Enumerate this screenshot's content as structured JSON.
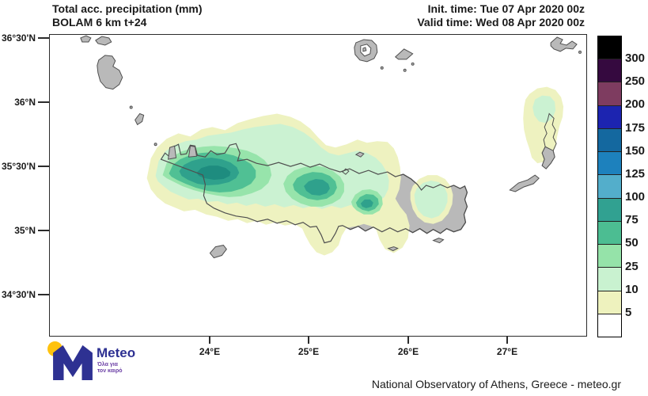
{
  "header": {
    "title_line1": "Total acc. precipitation (mm)",
    "title_line2": "BOLAM 6 km t+24",
    "init_time": "Init. time: Tue 07 Apr 2020 00z",
    "valid_time": "Valid time: Wed 08 Apr 2020 00z"
  },
  "axes": {
    "lat_labels": [
      "36°30'N",
      "36°N",
      "35°30'N",
      "35°N",
      "34°30'N"
    ],
    "lon_labels": [
      "24°E",
      "25°E",
      "26°E",
      "27°E"
    ]
  },
  "colorbar": {
    "labels": [
      "300",
      "250",
      "200",
      "175",
      "150",
      "125",
      "100",
      "75",
      "50",
      "25",
      "10",
      "5"
    ],
    "segments": [
      {
        "range": "> 300",
        "color": "#000000"
      },
      {
        "range": "250-300",
        "color": "#35093f"
      },
      {
        "range": "200-250",
        "color": "#7e3c60"
      },
      {
        "range": "175-200",
        "color": "#1c24b0"
      },
      {
        "range": "150-175",
        "color": "#14689f"
      },
      {
        "range": "125-150",
        "color": "#1d81bd"
      },
      {
        "range": "100-125",
        "color": "#53aecb"
      },
      {
        "range": "75-100",
        "color": "#31a191"
      },
      {
        "range": "50-75",
        "color": "#4cbd92"
      },
      {
        "range": "25-50",
        "color": "#95e3a9"
      },
      {
        "range": "10-25",
        "color": "#c9f2d0"
      },
      {
        "range": "5-10",
        "color": "#eef2be"
      },
      {
        "range": "< 5",
        "color": "#ffffff"
      }
    ]
  },
  "map_colors": {
    "land": "#b9b9b9",
    "coast": "#4f4f4f",
    "lvl5": "#eef2c0",
    "lvl10": "#cbf2d2",
    "lvl25": "#97e4ab",
    "lvl50": "#50c094",
    "lvl75": "#2fa18c",
    "core": "#1e8c7f"
  },
  "logo": {
    "brand": "Meteo",
    "tagline_line1": "Όλα για",
    "tagline_line2": "τον καιρό"
  },
  "footer": {
    "attribution": "National Observatory of Athens, Greece - meteo.gr"
  }
}
